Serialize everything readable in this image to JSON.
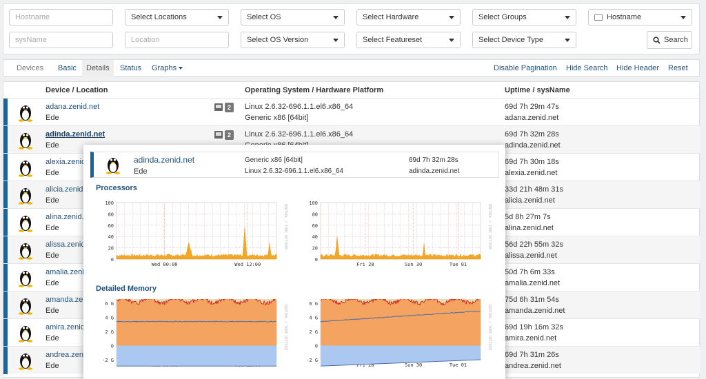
{
  "search": {
    "hostname_placeholder": "Hostname",
    "sysname_placeholder": "sysName",
    "location_placeholder": "Location",
    "locations": "Select Locations",
    "os": "Select OS",
    "os_version": "Select OS Version",
    "hardware": "Select Hardware",
    "featureset": "Select Featureset",
    "groups": "Select Groups",
    "device_type": "Select Device Type",
    "hostname_select": "Hostname",
    "search_button": "Search"
  },
  "nav": {
    "brand": "Devices",
    "basic": "Basic",
    "details": "Details",
    "status": "Status",
    "graphs": "Graphs",
    "disable_pagination": "Disable Pagination",
    "hide_search": "Hide Search",
    "hide_header": "Hide Header",
    "reset": "Reset"
  },
  "table": {
    "headers": [
      "Device / Location",
      "Operating System / Hardware Platform",
      "Uptime / sysName"
    ],
    "rows": [
      {
        "name": "adana.zenid.net",
        "loc": "Ede",
        "os": "Linux 2.6.32-696.1.1.el6.x86_64",
        "hw": "Generic x86 [64bit]",
        "uptime": "69d 7h 29m 47s",
        "sysname": "adana.zenid.net",
        "count": "2"
      },
      {
        "name": "adinda.zenid.net",
        "loc": "Ede",
        "os": "Linux 2.6.32-696.1.1.el6.x86_64",
        "hw": "Generic x86 [64bit]",
        "uptime": "69d 7h 32m 28s",
        "sysname": "adinda.zenid.net",
        "count": "2"
      },
      {
        "name": "alexia.zenid.net",
        "loc": "Ede",
        "os": "",
        "hw": "",
        "uptime": "69d 7h 30m 18s",
        "sysname": "alexia.zenid.net",
        "count": ""
      },
      {
        "name": "alicia.zenid.net",
        "loc": "Ede",
        "os": "",
        "hw": "",
        "uptime": "33d 21h 48m 31s",
        "sysname": "alicia.zenid.net",
        "count": ""
      },
      {
        "name": "alina.zenid.net",
        "loc": "Ede",
        "os": "",
        "hw": "",
        "uptime": "5d 8h 27m 7s",
        "sysname": "alina.zenid.net",
        "count": ""
      },
      {
        "name": "alissa.zenid.net",
        "loc": "Ede",
        "os": "",
        "hw": "",
        "uptime": "56d 22h 55m 32s",
        "sysname": "alissa.zenid.net",
        "count": ""
      },
      {
        "name": "amalia.zenid.net",
        "loc": "Ede",
        "os": "",
        "hw": "",
        "uptime": "50d 7h 6m 33s",
        "sysname": "amalia.zenid.net",
        "count": ""
      },
      {
        "name": "amanda.zenid.net",
        "loc": "Ede",
        "os": "",
        "hw": "",
        "uptime": "75d 6h 31m 54s",
        "sysname": "amanda.zenid.net",
        "count": ""
      },
      {
        "name": "amira.zenid.net",
        "loc": "Ede",
        "os": "",
        "hw": "",
        "uptime": "69d 19h 16m 32s",
        "sysname": "amira.zenid.net",
        "count": ""
      },
      {
        "name": "andrea.zenid.net",
        "loc": "Ede",
        "os": "",
        "hw": "",
        "uptime": "69d 7h 31m 26s",
        "sysname": "andrea.zenid.net",
        "count": ""
      }
    ]
  },
  "popup": {
    "name": "adinda.zenid.net",
    "loc": "Ede",
    "hw": "Generic x86 [64bit]",
    "os": "Linux 2.6.32-696.1.1.el6.x86_64",
    "uptime": "69d 7h 32m 28s",
    "sysname": "adinda.zenid.net",
    "processors_title": "Processors",
    "memory_title": "Detailed Memory",
    "watermark": "RRDTOOL / TOBI OETIKER",
    "cpu_day_x": [
      "Wed 00:00",
      "Wed 12:00"
    ],
    "cpu_week_x": [
      "Fri 28",
      "Sun 30",
      "Tue 01"
    ],
    "cpu_y": [
      "100",
      "80",
      "60",
      "40",
      "20",
      "0"
    ],
    "mem_y": [
      "6 G",
      "4 G",
      "2 G",
      "0",
      "-2 G"
    ]
  },
  "colors": {
    "accent": "#19639f",
    "link": "#23527c",
    "cpu": "#f5a623",
    "mem_orange": "#f4a460",
    "mem_blue": "#aac8f0"
  }
}
